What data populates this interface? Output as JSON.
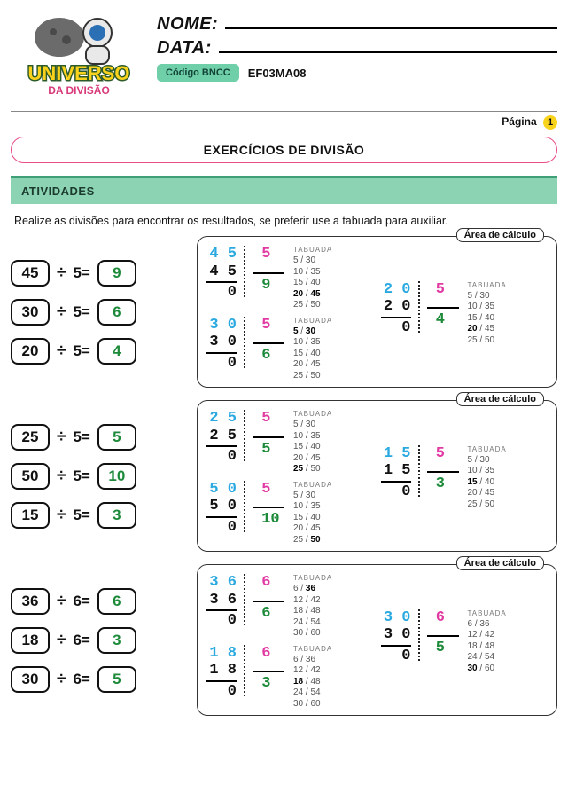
{
  "header": {
    "logo_top": "UNIVERSO",
    "logo_bottom": "DA DIVISÃO",
    "name_label": "NOME:",
    "date_label": "DATA:",
    "bncc_chip": "Código BNCC",
    "bncc_code": "EF03MA08",
    "page_label": "Página",
    "page_number": "1"
  },
  "title": "EXERCÍCIOS DE DIVISÃO",
  "section_label": "ATIVIDADES",
  "instruction": "Realize as divisões para encontrar os resultados, se preferir use a tabuada para auxiliar.",
  "calc_label": "Área de cálculo",
  "tabuada_label": "TABUADA",
  "colors": {
    "dividend": "#2aa9e0",
    "divisor": "#e23aa3",
    "quotient": "#1d8a3a",
    "answer": "#1d8a3a",
    "accent_pill": "#e94b86",
    "section_bg": "#8bd3b2",
    "section_border": "#3f9f77",
    "page_dot": "#f9d21c",
    "bncc_chip_bg": "#6fcfa9"
  },
  "blocks": [
    {
      "equations": [
        {
          "dividend": "45",
          "op": "÷",
          "divisor": "5",
          "eq": "=",
          "answer": "9"
        },
        {
          "dividend": "30",
          "op": "÷",
          "divisor": "5",
          "eq": "=",
          "answer": "6"
        },
        {
          "dividend": "20",
          "op": "÷",
          "divisor": "5",
          "eq": "=",
          "answer": "4"
        }
      ],
      "works_left": [
        {
          "dividend": "4 5",
          "sub": "4 5",
          "rem": "0",
          "divisor": "5",
          "quotient": "9",
          "tabuada": [
            [
              "5",
              "30"
            ],
            [
              "10",
              "35"
            ],
            [
              "15",
              "40"
            ],
            [
              "20",
              "45",
              true
            ],
            [
              "25",
              "50"
            ]
          ]
        },
        {
          "dividend": "3 0",
          "sub": "3 0",
          "rem": "0",
          "divisor": "5",
          "quotient": "6",
          "tabuada": [
            [
              "5",
              "30",
              true
            ],
            [
              "10",
              "35"
            ],
            [
              "15",
              "40"
            ],
            [
              "20",
              "45"
            ],
            [
              "25",
              "50"
            ]
          ]
        }
      ],
      "work_right": {
        "dividend": "2 0",
        "sub": "2 0",
        "rem": "0",
        "divisor": "5",
        "quotient": "4",
        "tabuada": [
          [
            "5",
            "30"
          ],
          [
            "10",
            "35"
          ],
          [
            "15",
            "40"
          ],
          [
            "20",
            "45",
            true,
            "left"
          ],
          [
            "25",
            "50"
          ]
        ]
      }
    },
    {
      "equations": [
        {
          "dividend": "25",
          "op": "÷",
          "divisor": "5",
          "eq": "=",
          "answer": "5"
        },
        {
          "dividend": "50",
          "op": "÷",
          "divisor": "5",
          "eq": "=",
          "answer": "10"
        },
        {
          "dividend": "15",
          "op": "÷",
          "divisor": "5",
          "eq": "=",
          "answer": "3"
        }
      ],
      "works_left": [
        {
          "dividend": "2 5",
          "sub": "2 5",
          "rem": "0",
          "divisor": "5",
          "quotient": "5",
          "tabuada": [
            [
              "5",
              "30"
            ],
            [
              "10",
              "35"
            ],
            [
              "15",
              "40"
            ],
            [
              "20",
              "45"
            ],
            [
              "25",
              "50",
              true,
              "left"
            ]
          ]
        },
        {
          "dividend": "5 0",
          "sub": "5 0",
          "rem": "0",
          "divisor": "5",
          "quotient": "10",
          "tabuada": [
            [
              "5",
              "30"
            ],
            [
              "10",
              "35"
            ],
            [
              "15",
              "40"
            ],
            [
              "20",
              "45"
            ],
            [
              "25",
              "50",
              true,
              "right"
            ]
          ]
        }
      ],
      "work_right": {
        "dividend": "1 5",
        "sub": "1 5",
        "rem": "0",
        "divisor": "5",
        "quotient": "3",
        "tabuada": [
          [
            "5",
            "30"
          ],
          [
            "10",
            "35"
          ],
          [
            "15",
            "40",
            true,
            "left"
          ],
          [
            "20",
            "45"
          ],
          [
            "25",
            "50"
          ]
        ]
      }
    },
    {
      "equations": [
        {
          "dividend": "36",
          "op": "÷",
          "divisor": "6",
          "eq": "=",
          "answer": "6"
        },
        {
          "dividend": "18",
          "op": "÷",
          "divisor": "6",
          "eq": "=",
          "answer": "3"
        },
        {
          "dividend": "30",
          "op": "÷",
          "divisor": "6",
          "eq": "=",
          "answer": "5"
        }
      ],
      "works_left": [
        {
          "dividend": "3 6",
          "sub": "3 6",
          "rem": "0",
          "divisor": "6",
          "quotient": "6",
          "tabuada": [
            [
              "6",
              "36",
              true,
              "right"
            ],
            [
              "12",
              "42"
            ],
            [
              "18",
              "48"
            ],
            [
              "24",
              "54"
            ],
            [
              "30",
              "60"
            ]
          ]
        },
        {
          "dividend": "1 8",
          "sub": "1 8",
          "rem": "0",
          "divisor": "6",
          "quotient": "3",
          "tabuada": [
            [
              "6",
              "36"
            ],
            [
              "12",
              "42"
            ],
            [
              "18",
              "48",
              true,
              "left"
            ],
            [
              "24",
              "54"
            ],
            [
              "30",
              "60"
            ]
          ]
        }
      ],
      "work_right": {
        "dividend": "3 0",
        "sub": "3 0",
        "rem": "0",
        "divisor": "6",
        "quotient": "5",
        "tabuada": [
          [
            "6",
            "36"
          ],
          [
            "12",
            "42"
          ],
          [
            "18",
            "48"
          ],
          [
            "24",
            "54"
          ],
          [
            "30",
            "60",
            true,
            "left"
          ]
        ]
      }
    }
  ]
}
